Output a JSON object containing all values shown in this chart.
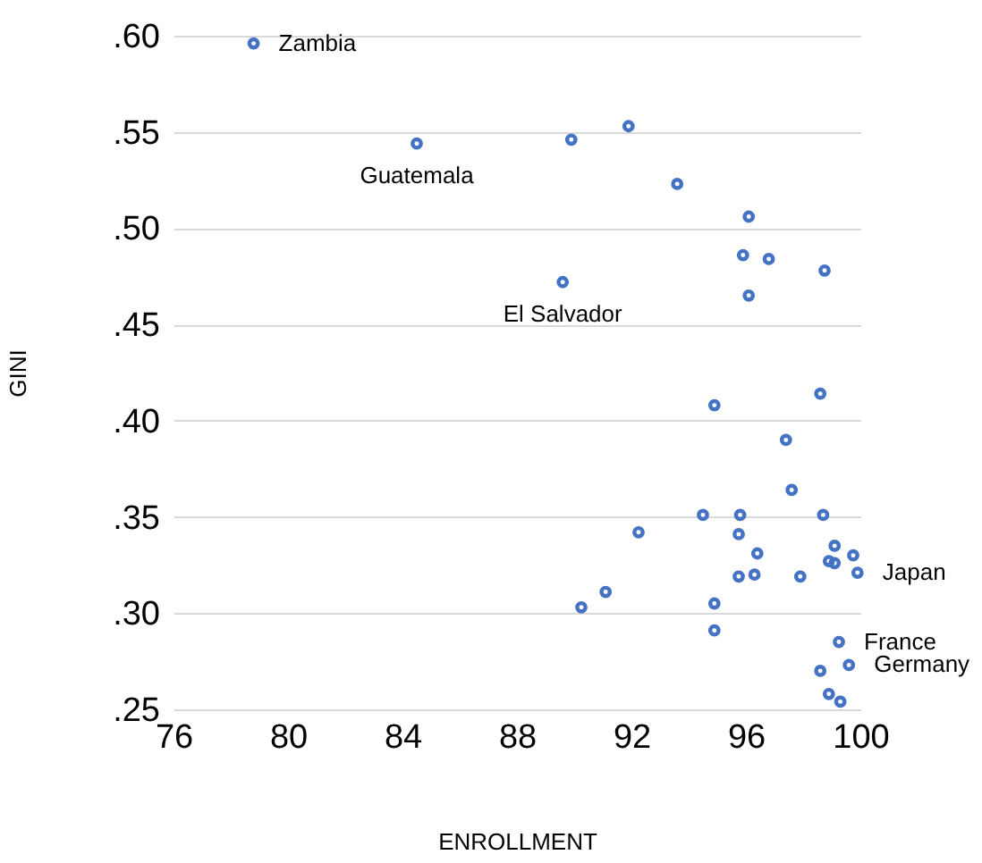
{
  "chart_data": {
    "type": "scatter",
    "xlabel": "ENROLLMENT",
    "ylabel": "GINI",
    "x": [
      78.8,
      84.5,
      89.9,
      91.9,
      93.6,
      96.1,
      95.9,
      96.8,
      98.75,
      89.6,
      96.1,
      94.9,
      98.6,
      97.4,
      97.6,
      94.5,
      95.8,
      98.7,
      92.25,
      95.75,
      99.1,
      96.4,
      99.75,
      98.9,
      99.1,
      99.9,
      95.75,
      96.3,
      97.9,
      91.1,
      90.25,
      94.9,
      94.9,
      99.25,
      99.6,
      98.6,
      98.9,
      99.3
    ],
    "series": [
      {
        "color": "#4472c4",
        "values": [
          0.596,
          0.544,
          0.546,
          0.553,
          0.523,
          0.506,
          0.486,
          0.484,
          0.478,
          0.472,
          0.465,
          0.408,
          0.414,
          0.39,
          0.364,
          0.351,
          0.351,
          0.351,
          0.342,
          0.341,
          0.335,
          0.331,
          0.33,
          0.327,
          0.326,
          0.321,
          0.319,
          0.32,
          0.319,
          0.311,
          0.303,
          0.305,
          0.291,
          0.285,
          0.273,
          0.27,
          0.258,
          0.254
        ]
      }
    ],
    "xlim": [
      76,
      100
    ],
    "xticks": [
      76,
      80,
      84,
      88,
      92,
      96,
      100
    ],
    "ylim": [
      0.25,
      0.6
    ],
    "yticks": [
      {
        "value": 0.25,
        "label": ".25"
      },
      {
        "value": 0.3,
        "label": ".30"
      },
      {
        "value": 0.35,
        "label": ".35"
      },
      {
        "value": 0.4,
        "label": ".40"
      },
      {
        "value": 0.45,
        "label": ".45"
      },
      {
        "value": 0.5,
        "label": ".50"
      },
      {
        "value": 0.55,
        "label": ".55"
      },
      {
        "value": 0.6,
        "label": ".60"
      }
    ],
    "grid": "y",
    "marker": "circle",
    "annotations": [
      {
        "text": "Zambia",
        "x": 78.8,
        "y": 0.596
      },
      {
        "text": "Guatemala",
        "x": 84.5,
        "y": 0.544
      },
      {
        "text": "El Salvador",
        "x": 89.6,
        "y": 0.472
      },
      {
        "text": "Japan",
        "x": 99.9,
        "y": 0.321
      },
      {
        "text": "France",
        "x": 99.25,
        "y": 0.285
      },
      {
        "text": "Germany",
        "x": 99.6,
        "y": 0.273
      }
    ]
  }
}
